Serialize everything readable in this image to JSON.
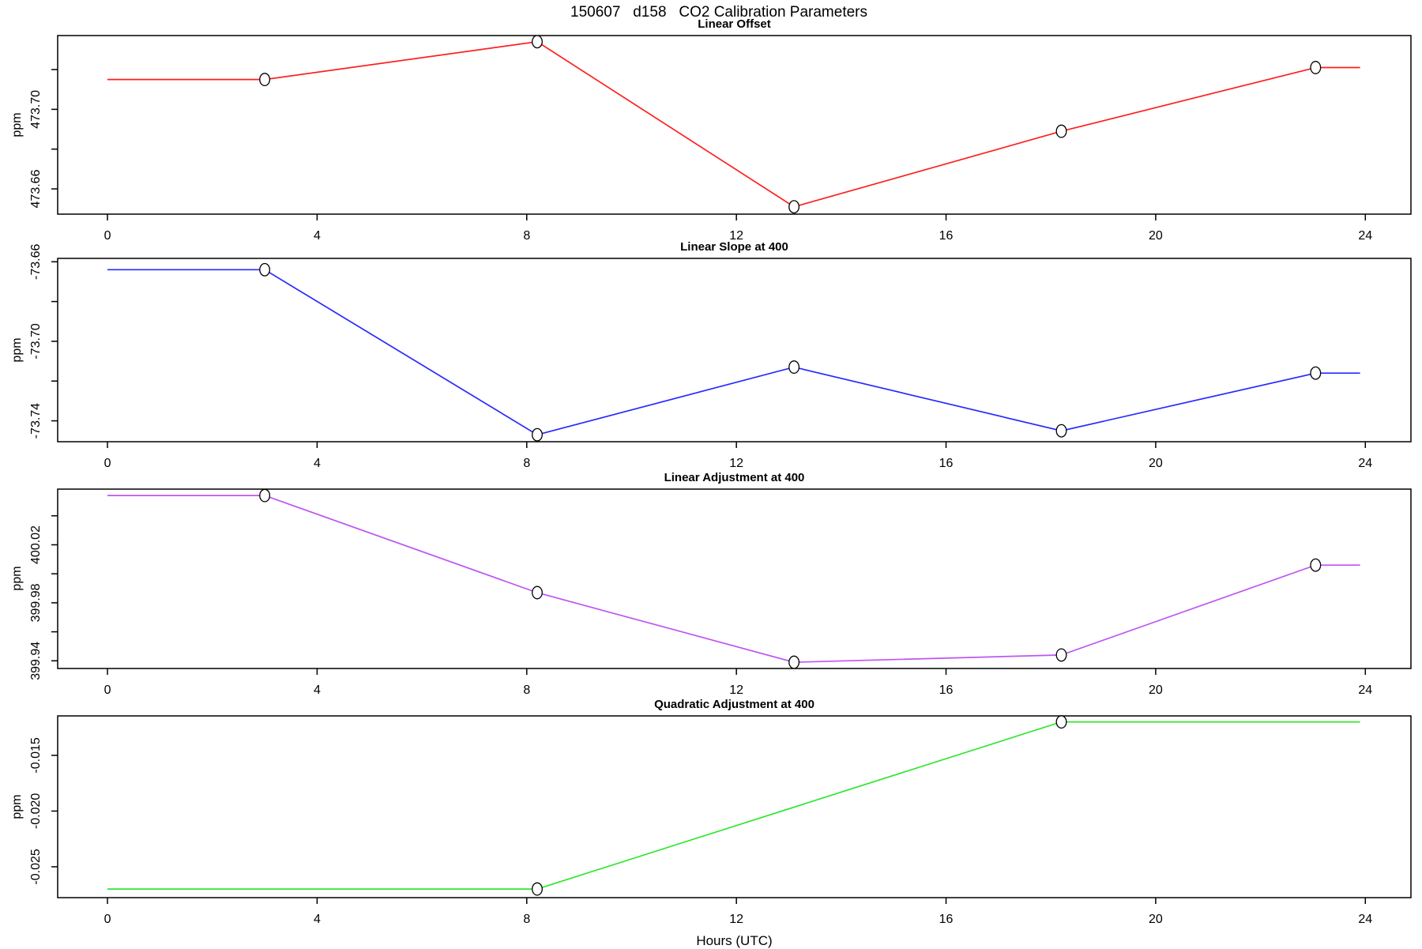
{
  "page": {
    "title": "150607   d158   CO2 Calibration Parameters",
    "xlabel": "Hours (UTC)"
  },
  "chart_data": [
    {
      "type": "line",
      "title": "Linear Offset",
      "ylabel": "ppm",
      "color": "#ff1f1f",
      "x": [
        0,
        3,
        8.2,
        13.1,
        18.2,
        23.05,
        23.9
      ],
      "y": [
        473.715,
        473.715,
        473.734,
        473.651,
        473.689,
        473.721,
        473.721
      ],
      "markers": [
        false,
        true,
        true,
        true,
        true,
        true,
        false
      ],
      "xlim": [
        -0.95,
        24.87
      ],
      "ylim": [
        473.6473,
        473.7371
      ],
      "xticks": [
        0,
        4,
        8,
        12,
        16,
        20,
        24
      ],
      "yticks": [
        473.66,
        473.68,
        473.7,
        473.72
      ],
      "ytick_labels": [
        "473.66",
        "",
        "473.70",
        ""
      ],
      "legend": "none",
      "grid": false
    },
    {
      "type": "line",
      "title": "Linear Slope at 400",
      "ylabel": "ppm",
      "color": "#2929ff",
      "x": [
        0,
        3,
        8.2,
        13.1,
        18.2,
        23.05,
        23.9
      ],
      "y": [
        -73.664,
        -73.664,
        -73.747,
        -73.713,
        -73.745,
        -73.716,
        -73.716
      ],
      "markers": [
        false,
        true,
        true,
        true,
        true,
        true,
        false
      ],
      "xlim": [
        -0.95,
        24.87
      ],
      "ylim": [
        -73.7505,
        -73.6583
      ],
      "xticks": [
        0,
        4,
        8,
        12,
        16,
        20,
        24
      ],
      "yticks": [
        -73.74,
        -73.72,
        -73.7,
        -73.68,
        -73.66
      ],
      "ytick_labels": [
        "-73.74",
        "",
        "-73.70",
        "",
        "-73.66"
      ],
      "legend": "none",
      "grid": false
    },
    {
      "type": "line",
      "title": "Linear Adjustment at 400",
      "ylabel": "ppm",
      "color": "#bf55f2",
      "x": [
        0,
        3,
        8.2,
        13.1,
        18.2,
        23.05,
        23.9
      ],
      "y": [
        400.054,
        400.054,
        399.987,
        399.939,
        399.944,
        400.006,
        400.006
      ],
      "markers": [
        false,
        true,
        true,
        true,
        true,
        true,
        false
      ],
      "xlim": [
        -0.95,
        24.87
      ],
      "ylim": [
        399.9347,
        400.0584
      ],
      "xticks": [
        0,
        4,
        8,
        12,
        16,
        20,
        24
      ],
      "yticks": [
        399.94,
        399.96,
        399.98,
        400.0,
        400.02,
        400.04
      ],
      "ytick_labels": [
        "399.94",
        "",
        "399.98",
        "",
        "400.02",
        ""
      ],
      "legend": "none",
      "grid": false
    },
    {
      "type": "line",
      "title": "Quadratic Adjustment at 400",
      "ylabel": "ppm",
      "color": "#32e632",
      "x": [
        0,
        8.2,
        18.2,
        23.9
      ],
      "y": [
        -0.027,
        -0.027,
        -0.012,
        -0.012
      ],
      "markers": [
        false,
        true,
        true,
        false
      ],
      "xlim": [
        -0.95,
        24.87
      ],
      "ylim": [
        -0.02777,
        -0.01146
      ],
      "xticks": [
        0,
        4,
        8,
        12,
        16,
        20,
        24
      ],
      "yticks": [
        -0.025,
        -0.02,
        -0.015
      ],
      "ytick_labels": [
        "-0.025",
        "-0.020",
        "-0.015"
      ],
      "legend": "none",
      "grid": false
    }
  ]
}
